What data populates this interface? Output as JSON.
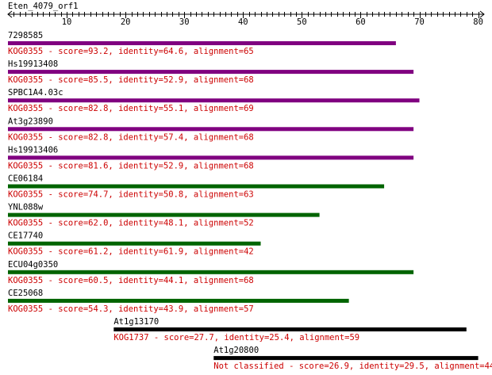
{
  "query": {
    "name": "Eten_4079_orf1",
    "length": 81,
    "ticks": [
      "10",
      "20",
      "30",
      "40",
      "50",
      "60",
      "70",
      "80"
    ]
  },
  "hits": [
    {
      "id": "7298585",
      "start": 1,
      "end": 66,
      "color": "#800080",
      "desc": "KOG0355 - score=93.2, identity=64.6, alignment=65"
    },
    {
      "id": "Hs19913408",
      "start": 1,
      "end": 69,
      "color": "#800080",
      "desc": "KOG0355 - score=85.5, identity=52.9, alignment=68"
    },
    {
      "id": "SPBC1A4.03c",
      "start": 1,
      "end": 70,
      "color": "#800080",
      "desc": "KOG0355 - score=82.8, identity=55.1, alignment=69"
    },
    {
      "id": "At3g23890",
      "start": 1,
      "end": 69,
      "color": "#800080",
      "desc": "KOG0355 - score=82.8, identity=57.4, alignment=68"
    },
    {
      "id": "Hs19913406",
      "start": 1,
      "end": 69,
      "color": "#800080",
      "desc": "KOG0355 - score=81.6, identity=52.9, alignment=68"
    },
    {
      "id": "CE06184",
      "start": 1,
      "end": 64,
      "color": "#006400",
      "desc": "KOG0355 - score=74.7, identity=50.8, alignment=63"
    },
    {
      "id": "YNL088w",
      "start": 1,
      "end": 53,
      "color": "#006400",
      "desc": "KOG0355 - score=62.0, identity=48.1, alignment=52"
    },
    {
      "id": "CE17740",
      "start": 1,
      "end": 43,
      "color": "#006400",
      "desc": "KOG0355 - score=61.2, identity=61.9, alignment=42"
    },
    {
      "id": "ECU04g0350",
      "start": 1,
      "end": 69,
      "color": "#006400",
      "desc": "KOG0355 - score=60.5, identity=44.1, alignment=68"
    },
    {
      "id": "CE25068",
      "start": 1,
      "end": 58,
      "color": "#006400",
      "desc": "KOG0355 - score=54.3, identity=43.9, alignment=57"
    },
    {
      "id": "At1g13170",
      "start": 19,
      "end": 78,
      "color": "#000000",
      "desc": "KOG1737 - score=27.7, identity=25.4, alignment=59"
    },
    {
      "id": "At1g20800",
      "start": 36,
      "end": 80,
      "color": "#000000",
      "desc": "Not classified - score=26.9, identity=29.5, alignment=44"
    }
  ],
  "desc_color": "#cc0000"
}
